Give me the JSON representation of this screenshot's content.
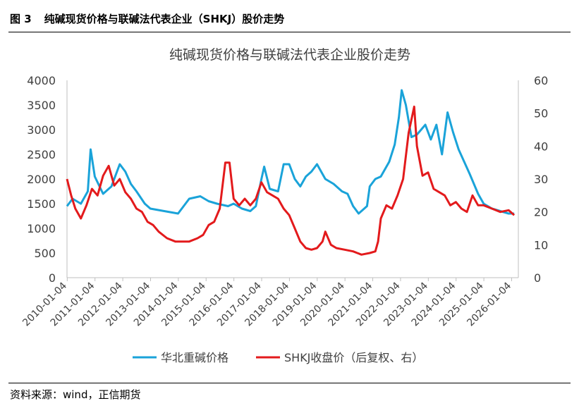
{
  "figure": {
    "label": "图 3",
    "title": "纯碱现货价格与联碱法代表企业（SHKJ）股价走势",
    "source": "资料来源：wind，正信期货"
  },
  "chart_data": {
    "type": "line",
    "title": "纯碱现货价格与联碱法代表企业股价走势",
    "left_axis": {
      "min": 0,
      "max": 4000,
      "ticks": [
        "0",
        "500",
        "1000",
        "1500",
        "2000",
        "2500",
        "3000",
        "3500",
        "4000"
      ]
    },
    "right_axis": {
      "min": 0,
      "max": 60,
      "ticks": [
        "0",
        "10",
        "20",
        "30",
        "40",
        "50",
        "60"
      ]
    },
    "x_tick_labels": [
      "2010-01-04",
      "2011-01-04",
      "2012-01-04",
      "2013-01-04",
      "2014-01-04",
      "2015-01-04",
      "2016-01-04",
      "2017-01-04",
      "2018-01-04",
      "2019-01-04",
      "2020-01-04",
      "2021-01-04",
      "2022-01-04",
      "2023-01-04",
      "2024-01-04",
      "2025-01-04",
      "2026-01-04"
    ],
    "legend_position": "bottom",
    "series": [
      {
        "name": "华北重碱价格",
        "axis": "left",
        "color": "#1aa3d9",
        "points": [
          [
            2010.0,
            1450
          ],
          [
            2010.2,
            1600
          ],
          [
            2010.5,
            1500
          ],
          [
            2010.75,
            1750
          ],
          [
            2010.85,
            2600
          ],
          [
            2011.0,
            2050
          ],
          [
            2011.3,
            1700
          ],
          [
            2011.6,
            1850
          ],
          [
            2011.9,
            2300
          ],
          [
            2012.1,
            2150
          ],
          [
            2012.3,
            1900
          ],
          [
            2012.5,
            1750
          ],
          [
            2012.8,
            1500
          ],
          [
            2013.0,
            1400
          ],
          [
            2013.5,
            1350
          ],
          [
            2014.0,
            1300
          ],
          [
            2014.2,
            1450
          ],
          [
            2014.4,
            1600
          ],
          [
            2014.8,
            1650
          ],
          [
            2015.1,
            1550
          ],
          [
            2015.4,
            1500
          ],
          [
            2015.8,
            1450
          ],
          [
            2016.0,
            1500
          ],
          [
            2016.3,
            1400
          ],
          [
            2016.6,
            1350
          ],
          [
            2016.8,
            1450
          ],
          [
            2017.0,
            2000
          ],
          [
            2017.1,
            2250
          ],
          [
            2017.3,
            1800
          ],
          [
            2017.6,
            1750
          ],
          [
            2017.8,
            2300
          ],
          [
            2018.0,
            2300
          ],
          [
            2018.2,
            2000
          ],
          [
            2018.4,
            1850
          ],
          [
            2018.6,
            2050
          ],
          [
            2018.8,
            2150
          ],
          [
            2019.0,
            2300
          ],
          [
            2019.3,
            2000
          ],
          [
            2019.6,
            1900
          ],
          [
            2019.9,
            1750
          ],
          [
            2020.1,
            1700
          ],
          [
            2020.3,
            1450
          ],
          [
            2020.5,
            1300
          ],
          [
            2020.8,
            1450
          ],
          [
            2020.9,
            1850
          ],
          [
            2021.1,
            2000
          ],
          [
            2021.3,
            2050
          ],
          [
            2021.6,
            2350
          ],
          [
            2021.8,
            2700
          ],
          [
            2021.95,
            3250
          ],
          [
            2022.05,
            3800
          ],
          [
            2022.2,
            3500
          ],
          [
            2022.4,
            2850
          ],
          [
            2022.6,
            2900
          ],
          [
            2022.9,
            3100
          ],
          [
            2023.1,
            2800
          ],
          [
            2023.3,
            3100
          ],
          [
            2023.5,
            2500
          ],
          [
            2023.7,
            3350
          ],
          [
            2023.9,
            2950
          ],
          [
            2024.1,
            2600
          ],
          [
            2024.3,
            2350
          ],
          [
            2024.5,
            2100
          ],
          [
            2024.8,
            1700
          ],
          [
            2025.0,
            1500
          ],
          [
            2025.3,
            1400
          ],
          [
            2025.6,
            1350
          ],
          [
            2025.9,
            1300
          ],
          [
            2026.1,
            1300
          ]
        ]
      },
      {
        "name": "SHKJ收盘价（后复权、右）",
        "axis": "right",
        "color": "#e31a1c",
        "points": [
          [
            2010.0,
            30
          ],
          [
            2010.15,
            25
          ],
          [
            2010.3,
            21
          ],
          [
            2010.5,
            18
          ],
          [
            2010.7,
            22
          ],
          [
            2010.9,
            27
          ],
          [
            2011.1,
            25
          ],
          [
            2011.3,
            31
          ],
          [
            2011.5,
            34
          ],
          [
            2011.7,
            28
          ],
          [
            2011.9,
            30
          ],
          [
            2012.1,
            26
          ],
          [
            2012.3,
            24
          ],
          [
            2012.5,
            21
          ],
          [
            2012.7,
            20
          ],
          [
            2012.9,
            17
          ],
          [
            2013.1,
            16
          ],
          [
            2013.3,
            14
          ],
          [
            2013.6,
            12
          ],
          [
            2013.9,
            11
          ],
          [
            2014.1,
            11
          ],
          [
            2014.4,
            11
          ],
          [
            2014.7,
            12
          ],
          [
            2014.9,
            13
          ],
          [
            2015.1,
            16
          ],
          [
            2015.3,
            17
          ],
          [
            2015.5,
            21
          ],
          [
            2015.7,
            35
          ],
          [
            2015.85,
            35
          ],
          [
            2016.0,
            24
          ],
          [
            2016.2,
            22
          ],
          [
            2016.4,
            24
          ],
          [
            2016.6,
            22
          ],
          [
            2016.8,
            24
          ],
          [
            2017.0,
            29
          ],
          [
            2017.2,
            26
          ],
          [
            2017.4,
            25
          ],
          [
            2017.6,
            24
          ],
          [
            2017.8,
            21
          ],
          [
            2018.0,
            19
          ],
          [
            2018.2,
            15
          ],
          [
            2018.4,
            11
          ],
          [
            2018.6,
            9
          ],
          [
            2018.8,
            8.5
          ],
          [
            2019.0,
            9
          ],
          [
            2019.2,
            11
          ],
          [
            2019.3,
            14
          ],
          [
            2019.5,
            10
          ],
          [
            2019.7,
            9
          ],
          [
            2020.0,
            8.5
          ],
          [
            2020.3,
            8
          ],
          [
            2020.6,
            7
          ],
          [
            2020.9,
            7.5
          ],
          [
            2021.1,
            8
          ],
          [
            2021.2,
            11
          ],
          [
            2021.3,
            18
          ],
          [
            2021.5,
            22
          ],
          [
            2021.7,
            21
          ],
          [
            2021.9,
            25
          ],
          [
            2022.1,
            30
          ],
          [
            2022.3,
            44
          ],
          [
            2022.5,
            52
          ],
          [
            2022.6,
            40
          ],
          [
            2022.8,
            31
          ],
          [
            2023.0,
            32
          ],
          [
            2023.2,
            27
          ],
          [
            2023.4,
            26
          ],
          [
            2023.6,
            25
          ],
          [
            2023.8,
            22
          ],
          [
            2024.0,
            23
          ],
          [
            2024.2,
            21
          ],
          [
            2024.4,
            20
          ],
          [
            2024.6,
            25
          ],
          [
            2024.8,
            22
          ],
          [
            2025.0,
            22
          ],
          [
            2025.3,
            21
          ],
          [
            2025.6,
            20
          ],
          [
            2025.9,
            20.5
          ],
          [
            2026.1,
            19
          ]
        ]
      }
    ]
  }
}
